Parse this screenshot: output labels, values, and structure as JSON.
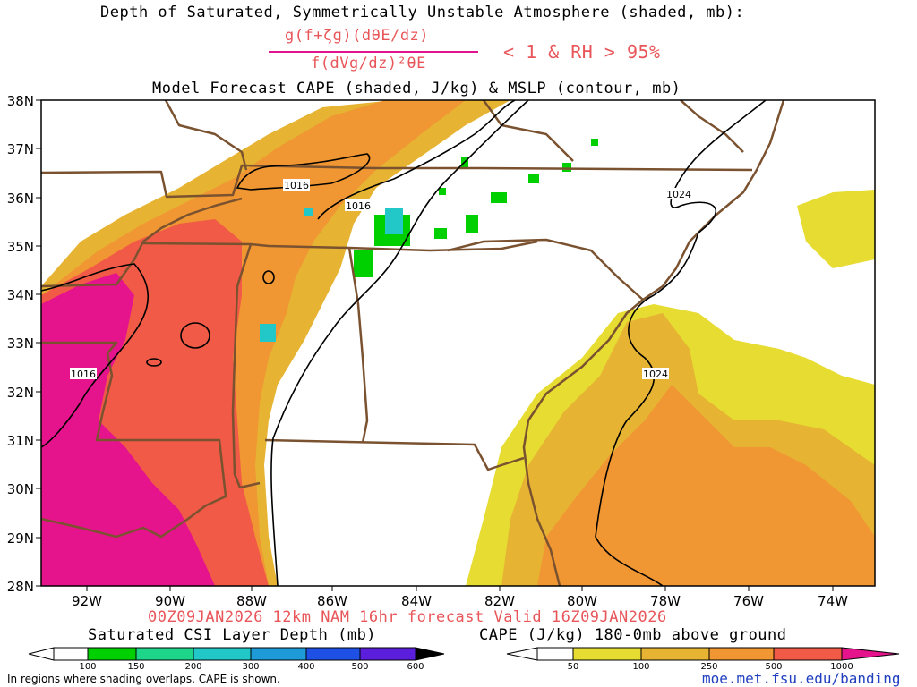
{
  "titles": {
    "line1": "Depth of Saturated, Symmetrically Unstable Atmosphere (shaded, mb):",
    "formula_numerator": "g(f+ζg)(dθE/dz)",
    "formula_denominator": "f(dVg/dz)²θE",
    "formula_condition": "< 1 & RH > 95%",
    "line3": "Model Forecast CAPE (shaded, J/kg) & MSLP (contour, mb)"
  },
  "valid_line": "00Z09JAN2026 12km NAM 16hr forecast Valid 16Z09JAN2026",
  "legend_csi": {
    "title": "Saturated CSI Layer Depth (mb)",
    "ticks": [
      "100",
      "150",
      "200",
      "300",
      "400",
      "500",
      "600"
    ],
    "colors": [
      "#00d000",
      "#1ed68a",
      "#22c7c8",
      "#1e9ad8",
      "#1e50e6",
      "#5a1edc",
      "#000000"
    ]
  },
  "legend_cape": {
    "title": "CAPE (J/kg) 180-0mb above ground",
    "ticks": [
      "50",
      "100",
      "250",
      "500",
      "1000"
    ],
    "colors": [
      "#e6dc32",
      "#e6b432",
      "#f09632",
      "#f05a46",
      "#e6148c"
    ]
  },
  "footer_note": "In regions where shading overlaps, CAPE is shown.",
  "url": "moe.met.fsu.edu/banding",
  "lat_labels": [
    "38N",
    "37N",
    "36N",
    "35N",
    "34N",
    "33N",
    "32N",
    "31N",
    "30N",
    "29N",
    "28N"
  ],
  "lon_labels": [
    "92W",
    "90W",
    "88W",
    "86W",
    "84W",
    "82W",
    "80W",
    "78W",
    "76W",
    "74W"
  ],
  "contour_labels": [
    "1016",
    "1016",
    "1024",
    "1016",
    "1024"
  ],
  "colors": {
    "border": "#7a5230",
    "title_pink": "#e8565a",
    "url_blue": "#1f3fbf"
  }
}
